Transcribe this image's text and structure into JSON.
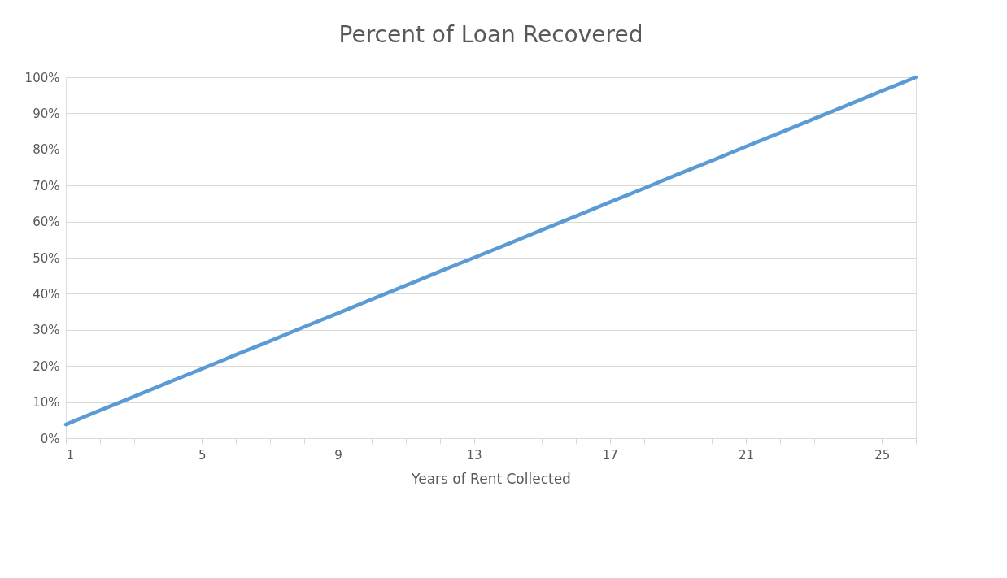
{
  "chart_data": {
    "type": "line",
    "title": "Percent of Loan Recovered",
    "xlabel": "Years of Rent Collected",
    "x": [
      1,
      2,
      3,
      4,
      5,
      6,
      7,
      8,
      9,
      10,
      11,
      12,
      13,
      14,
      15,
      16,
      17,
      18,
      19,
      20,
      21,
      22,
      23,
      24,
      25,
      26
    ],
    "series": [
      {
        "color": "#5b9bd5",
        "values": [
          3.8,
          7.7,
          11.5,
          15.4,
          19.2,
          23.1,
          26.9,
          30.8,
          34.6,
          38.5,
          42.3,
          46.2,
          50,
          53.8,
          57.7,
          61.5,
          65.4,
          69.2,
          73.1,
          76.9,
          80.8,
          84.6,
          88.5,
          92.3,
          96.2,
          100
        ]
      }
    ],
    "xlim": [
      1,
      26
    ],
    "xticks": [
      1,
      {
        "value": 2,
        "label": null
      },
      {
        "value": 3,
        "label": null
      },
      {
        "value": 4,
        "label": null
      },
      5,
      {
        "value": 6,
        "label": null
      },
      {
        "value": 7,
        "label": null
      },
      {
        "value": 8,
        "label": null
      },
      9,
      {
        "value": 10,
        "label": null
      },
      {
        "value": 11,
        "label": null
      },
      {
        "value": 12,
        "label": null
      },
      13,
      {
        "value": 14,
        "label": null
      },
      {
        "value": 15,
        "label": null
      },
      {
        "value": 16,
        "label": null
      },
      17,
      {
        "value": 18,
        "label": null
      },
      {
        "value": 19,
        "label": null
      },
      {
        "value": 20,
        "label": null
      },
      21,
      {
        "value": 22,
        "label": null
      },
      {
        "value": 23,
        "label": null
      },
      {
        "value": 24,
        "label": null
      },
      25,
      {
        "value": 26,
        "label": null
      }
    ],
    "ylim": [
      0,
      100
    ],
    "yticks": [
      {
        "value": 0,
        "label": "0%"
      },
      {
        "value": 10,
        "label": "10%"
      },
      {
        "value": 20,
        "label": "20%"
      },
      {
        "value": 30,
        "label": "30%"
      },
      {
        "value": 40,
        "label": "40%"
      },
      {
        "value": 50,
        "label": "50%"
      },
      {
        "value": 60,
        "label": "60%"
      },
      {
        "value": 70,
        "label": "70%"
      },
      {
        "value": 80,
        "label": "80%"
      },
      {
        "value": 90,
        "label": "90%"
      },
      {
        "value": 100,
        "label": "100%"
      }
    ],
    "grid": "y",
    "legend": false,
    "marker": "none",
    "line_style": "solid"
  }
}
